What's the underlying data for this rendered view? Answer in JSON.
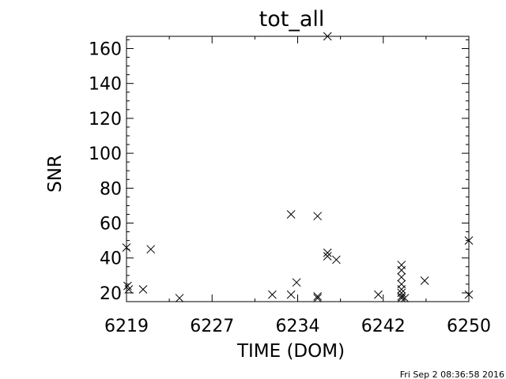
{
  "chart_data": {
    "type": "scatter",
    "title": "tot_all",
    "xlabel": "TIME (DOM)",
    "ylabel": "SNR",
    "xlim": [
      6219,
      6250
    ],
    "ylim": [
      15,
      167
    ],
    "x_ticks": [
      6219,
      6227,
      6234,
      6242,
      6250
    ],
    "x_tick_labels": [
      "6219",
      "6227",
      "6234",
      "6242",
      "6250"
    ],
    "y_ticks": [
      20,
      40,
      60,
      80,
      100,
      120,
      140,
      160
    ],
    "y_tick_labels": [
      "20",
      "40",
      "60",
      "80",
      "100",
      "120",
      "140",
      "160"
    ],
    "marker": "x",
    "grid": false,
    "points": [
      {
        "x": 6219.0,
        "y": 46
      },
      {
        "x": 6219.1,
        "y": 24
      },
      {
        "x": 6219.2,
        "y": 22
      },
      {
        "x": 6220.5,
        "y": 22
      },
      {
        "x": 6221.2,
        "y": 45
      },
      {
        "x": 6223.8,
        "y": 17
      },
      {
        "x": 6232.2,
        "y": 19
      },
      {
        "x": 6233.9,
        "y": 19
      },
      {
        "x": 6233.9,
        "y": 65
      },
      {
        "x": 6234.4,
        "y": 26
      },
      {
        "x": 6236.3,
        "y": 64
      },
      {
        "x": 6236.3,
        "y": 18
      },
      {
        "x": 6236.3,
        "y": 17
      },
      {
        "x": 6237.2,
        "y": 167
      },
      {
        "x": 6237.2,
        "y": 43
      },
      {
        "x": 6237.2,
        "y": 41
      },
      {
        "x": 6238.0,
        "y": 39
      },
      {
        "x": 6241.8,
        "y": 19
      },
      {
        "x": 6243.9,
        "y": 36
      },
      {
        "x": 6243.9,
        "y": 33
      },
      {
        "x": 6243.9,
        "y": 29
      },
      {
        "x": 6243.9,
        "y": 25
      },
      {
        "x": 6243.9,
        "y": 22
      },
      {
        "x": 6243.9,
        "y": 20
      },
      {
        "x": 6243.9,
        "y": 18
      },
      {
        "x": 6243.9,
        "y": 17
      },
      {
        "x": 6244.2,
        "y": 17
      },
      {
        "x": 6246.0,
        "y": 27
      },
      {
        "x": 6250.0,
        "y": 50
      },
      {
        "x": 6250.0,
        "y": 19
      }
    ]
  },
  "footer": {
    "timestamp": "Fri Sep  2 08:36:58 2016"
  }
}
